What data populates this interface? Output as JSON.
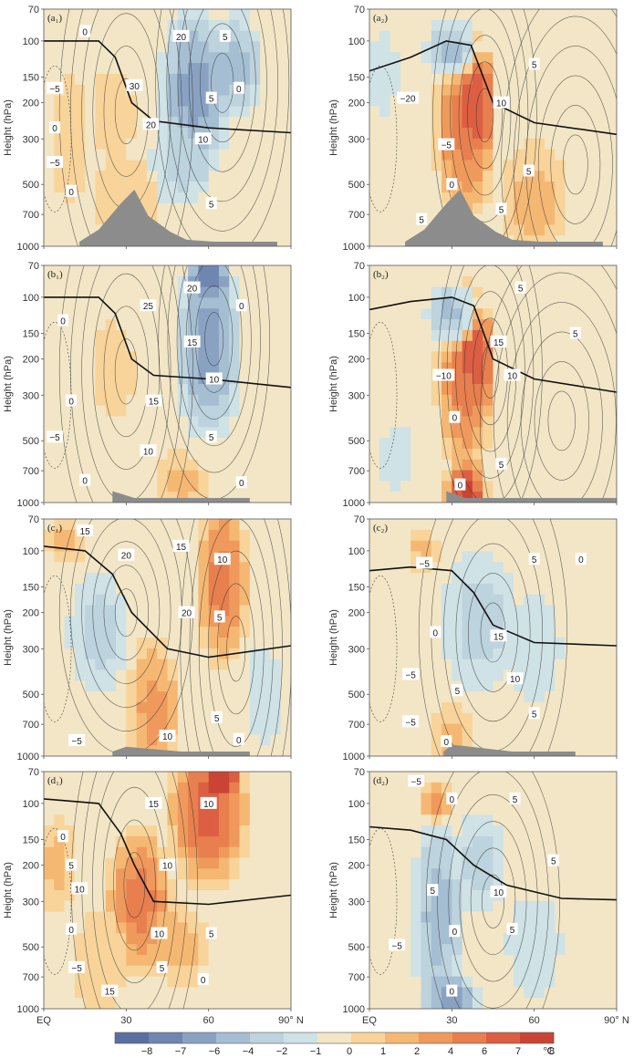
{
  "chart_data": {
    "type": "heatmap",
    "xlabel": "",
    "ylabel": "Height (hPa)",
    "x_ticks": [
      "EQ",
      "30",
      "60",
      "90° N"
    ],
    "x_values": [
      0,
      30,
      60,
      90
    ],
    "y_ticks": [
      "70",
      "100",
      "150",
      "200",
      "300",
      "500",
      "700",
      "1000"
    ],
    "y_values": [
      70,
      100,
      150,
      200,
      300,
      500,
      700,
      1000
    ],
    "xlim": [
      0,
      90
    ],
    "ylim": [
      1000,
      70
    ],
    "y_scale": "log",
    "colorbar": {
      "ticks": [
        "−8",
        "−7",
        "−6",
        "−4",
        "−2",
        "−1",
        "0",
        "1",
        "2",
        "4",
        "6",
        "7",
        "8"
      ],
      "levels": [
        -8,
        -7,
        -6,
        -4,
        -2,
        -1,
        0,
        1,
        2,
        4,
        6,
        7,
        8
      ],
      "colors": [
        "#5a6fa0",
        "#6f86b0",
        "#8aa2c2",
        "#a6bed2",
        "#bdd3dd",
        "#cfe2e6",
        "#f2e6c6",
        "#f8d49a",
        "#f5b873",
        "#ef9a5c",
        "#e77f4e",
        "#dc5e43",
        "#c94434"
      ],
      "unit": "℃"
    },
    "panels": [
      {
        "id": "a1",
        "label": "(a₁)",
        "contour_labels": [
          {
            "text": "0",
            "x": 15,
            "p": 90
          },
          {
            "text": "−5",
            "x": 4,
            "p": 170
          },
          {
            "text": "30",
            "x": 33,
            "p": 165
          },
          {
            "text": "20",
            "x": 50,
            "p": 95
          },
          {
            "text": "5",
            "x": 66,
            "p": 95
          },
          {
            "text": "0",
            "x": 4,
            "p": 265
          },
          {
            "text": "−5",
            "x": 4,
            "p": 390
          },
          {
            "text": "0",
            "x": 10,
            "p": 540
          },
          {
            "text": "20",
            "x": 39,
            "p": 255
          },
          {
            "text": "5",
            "x": 61,
            "p": 190
          },
          {
            "text": "0",
            "x": 71,
            "p": 170
          },
          {
            "text": "10",
            "x": 58,
            "p": 300
          },
          {
            "text": "5",
            "x": 61,
            "p": 620
          }
        ],
        "tropopause": [
          [
            0,
            100
          ],
          [
            20,
            100
          ],
          [
            26,
            120
          ],
          [
            32,
            200
          ],
          [
            40,
            245
          ],
          [
            60,
            265
          ],
          [
            90,
            280
          ]
        ],
        "topography": [
          [
            13,
            950
          ],
          [
            20,
            830
          ],
          [
            28,
            620
          ],
          [
            33,
            530
          ],
          [
            38,
            710
          ],
          [
            46,
            850
          ],
          [
            52,
            930
          ],
          [
            62,
            950
          ],
          [
            85,
            950
          ]
        ]
      },
      {
        "id": "a2",
        "label": "(a₂)",
        "contour_labels": [
          {
            "text": "−20",
            "x": 14,
            "p": 190
          },
          {
            "text": "10",
            "x": 48,
            "p": 200
          },
          {
            "text": "5",
            "x": 60,
            "p": 130
          },
          {
            "text": "−5",
            "x": 28,
            "p": 320
          },
          {
            "text": "0",
            "x": 30,
            "p": 500
          },
          {
            "text": "5",
            "x": 58,
            "p": 430
          },
          {
            "text": "5",
            "x": 48,
            "p": 660
          },
          {
            "text": "5",
            "x": 19,
            "p": 740
          }
        ],
        "tropopause": [
          [
            0,
            140
          ],
          [
            15,
            120
          ],
          [
            28,
            100
          ],
          [
            37,
            105
          ],
          [
            45,
            200
          ],
          [
            60,
            250
          ],
          [
            90,
            285
          ]
        ],
        "topography": [
          [
            13,
            950
          ],
          [
            20,
            830
          ],
          [
            28,
            620
          ],
          [
            33,
            530
          ],
          [
            38,
            710
          ],
          [
            46,
            850
          ],
          [
            52,
            930
          ],
          [
            62,
            950
          ],
          [
            85,
            950
          ]
        ]
      },
      {
        "id": "b1",
        "label": "(b₁)",
        "contour_labels": [
          {
            "text": "25",
            "x": 38,
            "p": 110
          },
          {
            "text": "20",
            "x": 54,
            "p": 90
          },
          {
            "text": "0",
            "x": 72,
            "p": 110
          },
          {
            "text": "0",
            "x": 7,
            "p": 130
          },
          {
            "text": "15",
            "x": 54,
            "p": 165
          },
          {
            "text": "10",
            "x": 62,
            "p": 250
          },
          {
            "text": "0",
            "x": 10,
            "p": 320
          },
          {
            "text": "15",
            "x": 40,
            "p": 320
          },
          {
            "text": "−5",
            "x": 4,
            "p": 480
          },
          {
            "text": "5",
            "x": 61,
            "p": 480
          },
          {
            "text": "10",
            "x": 38,
            "p": 560
          },
          {
            "text": "0",
            "x": 15,
            "p": 780
          },
          {
            "text": "0",
            "x": 72,
            "p": 800
          }
        ],
        "tropopause": [
          [
            0,
            100
          ],
          [
            20,
            100
          ],
          [
            26,
            120
          ],
          [
            32,
            200
          ],
          [
            40,
            240
          ],
          [
            60,
            250
          ],
          [
            90,
            275
          ]
        ],
        "topography": [
          [
            25,
            880
          ],
          [
            33,
            950
          ],
          [
            55,
            950
          ],
          [
            75,
            950
          ]
        ]
      },
      {
        "id": "b2",
        "label": "(b₂)",
        "contour_labels": [
          {
            "text": "5",
            "x": 55,
            "p": 90
          },
          {
            "text": "5",
            "x": 75,
            "p": 150
          },
          {
            "text": "15",
            "x": 47,
            "p": 165
          },
          {
            "text": "10",
            "x": 52,
            "p": 240
          },
          {
            "text": "−10",
            "x": 27,
            "p": 240
          },
          {
            "text": "0",
            "x": 31,
            "p": 385
          },
          {
            "text": "5",
            "x": 48,
            "p": 650
          },
          {
            "text": "0",
            "x": 33,
            "p": 820
          }
        ],
        "tropopause": [
          [
            0,
            115
          ],
          [
            15,
            105
          ],
          [
            30,
            100
          ],
          [
            38,
            110
          ],
          [
            45,
            200
          ],
          [
            60,
            250
          ],
          [
            90,
            290
          ]
        ],
        "topography": [
          [
            28,
            880
          ],
          [
            35,
            950
          ],
          [
            70,
            950
          ],
          [
            90,
            950
          ]
        ]
      },
      {
        "id": "c1",
        "label": "(c₁)",
        "contour_labels": [
          {
            "text": "15",
            "x": 15,
            "p": 80
          },
          {
            "text": "20",
            "x": 30,
            "p": 105
          },
          {
            "text": "15",
            "x": 50,
            "p": 95
          },
          {
            "text": "10",
            "x": 65,
            "p": 110
          },
          {
            "text": "20",
            "x": 52,
            "p": 200
          },
          {
            "text": "5",
            "x": 64,
            "p": 210
          },
          {
            "text": "5",
            "x": 63,
            "p": 650
          },
          {
            "text": "0",
            "x": 71,
            "p": 830
          },
          {
            "text": "10",
            "x": 45,
            "p": 800
          },
          {
            "text": "−5",
            "x": 12,
            "p": 840
          }
        ],
        "tropopause": [
          [
            0,
            95
          ],
          [
            15,
            100
          ],
          [
            25,
            130
          ],
          [
            32,
            200
          ],
          [
            45,
            300
          ],
          [
            60,
            330
          ],
          [
            90,
            290
          ]
        ],
        "topography": [
          [
            25,
            950
          ],
          [
            30,
            900
          ],
          [
            50,
            950
          ],
          [
            75,
            950
          ]
        ]
      },
      {
        "id": "c2",
        "label": "(c₂)",
        "contour_labels": [
          {
            "text": "−5",
            "x": 20,
            "p": 115
          },
          {
            "text": "5",
            "x": 60,
            "p": 110
          },
          {
            "text": "0",
            "x": 77,
            "p": 110
          },
          {
            "text": "0",
            "x": 24,
            "p": 250
          },
          {
            "text": "15",
            "x": 47,
            "p": 260
          },
          {
            "text": "−5",
            "x": 15,
            "p": 400
          },
          {
            "text": "5",
            "x": 32,
            "p": 480
          },
          {
            "text": "10",
            "x": 53,
            "p": 420
          },
          {
            "text": "5",
            "x": 60,
            "p": 620
          },
          {
            "text": "−5",
            "x": 15,
            "p": 680
          },
          {
            "text": "0",
            "x": 28,
            "p": 850
          }
        ],
        "tropopause": [
          [
            0,
            125
          ],
          [
            15,
            120
          ],
          [
            30,
            125
          ],
          [
            38,
            160
          ],
          [
            45,
            230
          ],
          [
            60,
            280
          ],
          [
            90,
            290
          ]
        ],
        "topography": [
          [
            27,
            950
          ],
          [
            30,
            880
          ],
          [
            52,
            950
          ],
          [
            75,
            950
          ]
        ]
      },
      {
        "id": "d1",
        "label": "(d₁)",
        "contour_labels": [
          {
            "text": "15",
            "x": 40,
            "p": 100
          },
          {
            "text": "10",
            "x": 60,
            "p": 100
          },
          {
            "text": "0",
            "x": 7,
            "p": 145
          },
          {
            "text": "5",
            "x": 10,
            "p": 200
          },
          {
            "text": "10",
            "x": 45,
            "p": 200
          },
          {
            "text": "10",
            "x": 13,
            "p": 260
          },
          {
            "text": "0",
            "x": 10,
            "p": 410
          },
          {
            "text": "10",
            "x": 42,
            "p": 430
          },
          {
            "text": "5",
            "x": 61,
            "p": 430
          },
          {
            "text": "−5",
            "x": 12,
            "p": 630
          },
          {
            "text": "5",
            "x": 43,
            "p": 630
          },
          {
            "text": "0",
            "x": 58,
            "p": 720
          },
          {
            "text": "15",
            "x": 24,
            "p": 820
          }
        ],
        "tropopause": [
          [
            0,
            95
          ],
          [
            20,
            100
          ],
          [
            28,
            140
          ],
          [
            33,
            200
          ],
          [
            40,
            300
          ],
          [
            60,
            310
          ],
          [
            90,
            280
          ]
        ],
        "topography": []
      },
      {
        "id": "d2",
        "label": "(d₂)",
        "contour_labels": [
          {
            "text": "−5",
            "x": 17,
            "p": 78
          },
          {
            "text": "0",
            "x": 30,
            "p": 95
          },
          {
            "text": "5",
            "x": 53,
            "p": 95
          },
          {
            "text": "5",
            "x": 67,
            "p": 190
          },
          {
            "text": "5",
            "x": 23,
            "p": 265
          },
          {
            "text": "10",
            "x": 47,
            "p": 270
          },
          {
            "text": "0",
            "x": 31,
            "p": 420
          },
          {
            "text": "5",
            "x": 52,
            "p": 410
          },
          {
            "text": "−5",
            "x": 10,
            "p": 490
          },
          {
            "text": "0",
            "x": 30,
            "p": 820
          }
        ],
        "tropopause": [
          [
            0,
            130
          ],
          [
            15,
            135
          ],
          [
            28,
            150
          ],
          [
            38,
            200
          ],
          [
            50,
            250
          ],
          [
            70,
            290
          ],
          [
            90,
            295
          ]
        ],
        "topography": []
      }
    ]
  }
}
